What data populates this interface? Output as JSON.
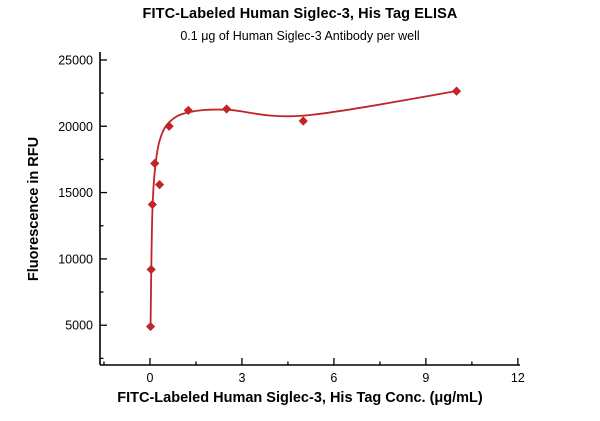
{
  "page": {
    "background": "#ffffff"
  },
  "chart_data": {
    "type": "scatter",
    "title": "FITC-Labeled Human Siglec-3, His Tag ELISA",
    "subtitle": "0.1 μg of Human Siglec-3 Antibody per well",
    "xlabel": "FITC-Labeled Human Siglec-3, His Tag Conc. (μg/mL)",
    "ylabel": "Fluorescence in RFU",
    "series_color": "#c02528",
    "axis_color": "#000000",
    "xlim": [
      -1.63,
      12.07
    ],
    "ylim": [
      2000,
      25600
    ],
    "x_ticks": [
      0,
      3,
      6,
      9,
      12
    ],
    "y_ticks": [
      5000,
      10000,
      15000,
      20000,
      25000
    ],
    "grid": false,
    "legend": "none",
    "marker": "diamond",
    "points": [
      [
        0.0195,
        4900
      ],
      [
        0.039,
        9200
      ],
      [
        0.078,
        14100
      ],
      [
        0.156,
        17200
      ],
      [
        0.3125,
        15600
      ],
      [
        0.625,
        20000
      ],
      [
        1.25,
        21200
      ],
      [
        2.5,
        21300
      ],
      [
        5,
        20400
      ],
      [
        10,
        22650
      ]
    ],
    "fit_curve": [
      [
        0.0195,
        4900
      ],
      [
        0.039,
        8600
      ],
      [
        0.078,
        13500
      ],
      [
        0.156,
        16600
      ],
      [
        0.3125,
        18900
      ],
      [
        0.625,
        20300
      ],
      [
        1.25,
        21050
      ],
      [
        2.5,
        21250
      ],
      [
        5,
        20800
      ],
      [
        10,
        22650
      ]
    ]
  }
}
